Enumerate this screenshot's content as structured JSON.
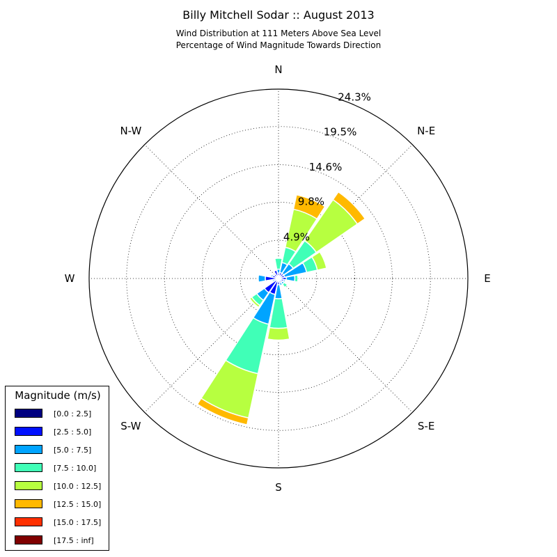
{
  "chart_data": {
    "type": "windrose",
    "title": "Billy Mitchell Sodar :: August 2013",
    "subtitle_lines": [
      "Wind Distribution at 111 Meters Above Sea Level",
      "Percentage of Wind Magnitude Towards Direction"
    ],
    "direction_labels": [
      {
        "label": "N",
        "deg": 0
      },
      {
        "label": "N-E",
        "deg": 45
      },
      {
        "label": "E",
        "deg": 90
      },
      {
        "label": "S-E",
        "deg": 135
      },
      {
        "label": "S",
        "deg": 180
      },
      {
        "label": "S-W",
        "deg": 225
      },
      {
        "label": "W",
        "deg": 270
      },
      {
        "label": "N-W",
        "deg": 315
      }
    ],
    "radial_ticks": [
      "4.9%",
      "9.8%",
      "14.6%",
      "19.5%",
      "24.3%"
    ],
    "radial_tick_values": [
      4.9,
      9.8,
      14.6,
      19.5,
      24.3
    ],
    "radial_max": 24.3,
    "grid": true,
    "bins": [
      {
        "label": "[0.0 : 2.5]",
        "color": "#000080"
      },
      {
        "label": "[2.5 : 5.0]",
        "color": "#0010ff"
      },
      {
        "label": "[5.0 : 7.5]",
        "color": "#00a4ff"
      },
      {
        "label": "[7.5 : 10.0]",
        "color": "#40ffb7"
      },
      {
        "label": "[10.0 : 12.5]",
        "color": "#b7ff40"
      },
      {
        "label": "[12.5 : 15.0]",
        "color": "#ffb900"
      },
      {
        "label": "[15.0 : 17.5]",
        "color": "#ff3000"
      },
      {
        "label": "[17.5 : inf]",
        "color": "#800000"
      }
    ],
    "sector_width_deg": 22.5,
    "sectors": [
      {
        "direction_deg": 0,
        "values": [
          0.3,
          0.4,
          0.5,
          1.4,
          0.0,
          0.0,
          0.0,
          0.0
        ]
      },
      {
        "direction_deg": 22.5,
        "values": [
          0.3,
          0.5,
          1.3,
          2.0,
          5.0,
          1.9,
          0.1,
          0.0
        ]
      },
      {
        "direction_deg": 45,
        "values": [
          0.3,
          0.5,
          1.5,
          3.6,
          6.4,
          1.2,
          0.0,
          0.0
        ]
      },
      {
        "direction_deg": 67.5,
        "values": [
          0.3,
          0.5,
          2.9,
          1.4,
          1.2,
          0.0,
          0.0,
          0.0
        ]
      },
      {
        "direction_deg": 90,
        "values": [
          0.3,
          0.7,
          1.1,
          0.4,
          0.0,
          0.0,
          0.0,
          0.0
        ]
      },
      {
        "direction_deg": 112.5,
        "values": [
          0.3,
          0.4,
          0.2,
          0.0,
          0.0,
          0.0,
          0.0,
          0.0
        ]
      },
      {
        "direction_deg": 135,
        "values": [
          0.3,
          0.3,
          0.3,
          0.5,
          0.0,
          0.0,
          0.0,
          0.0
        ]
      },
      {
        "direction_deg": 157.5,
        "values": [
          0.3,
          0.3,
          0.3,
          0.0,
          0.0,
          0.0,
          0.0,
          0.0
        ]
      },
      {
        "direction_deg": 180,
        "values": [
          0.3,
          0.5,
          1.8,
          3.8,
          1.5,
          0.0,
          0.0,
          0.0
        ]
      },
      {
        "direction_deg": 202.5,
        "values": [
          0.3,
          1.8,
          3.9,
          6.5,
          5.8,
          0.9,
          0.0,
          0.0
        ]
      },
      {
        "direction_deg": 225,
        "values": [
          0.3,
          1.9,
          1.2,
          0.8,
          0.3,
          0.0,
          0.0,
          0.0
        ]
      },
      {
        "direction_deg": 247.5,
        "values": [
          0.3,
          0.3,
          0.2,
          0.0,
          0.0,
          0.0,
          0.0,
          0.0
        ]
      },
      {
        "direction_deg": 270,
        "values": [
          0.3,
          1.4,
          0.9,
          0.0,
          0.0,
          0.0,
          0.0,
          0.0
        ]
      },
      {
        "direction_deg": 292.5,
        "values": [
          0.3,
          0.5,
          0.2,
          0.0,
          0.0,
          0.0,
          0.0,
          0.0
        ]
      },
      {
        "direction_deg": 315,
        "values": [
          0.3,
          0.4,
          0.0,
          0.0,
          0.0,
          0.0,
          0.0,
          0.0
        ]
      },
      {
        "direction_deg": 337.5,
        "values": [
          0.3,
          0.8,
          0.1,
          0.0,
          0.0,
          0.0,
          0.0,
          0.0
        ]
      }
    ]
  },
  "legend": {
    "title": "Magnitude (m/s)"
  }
}
